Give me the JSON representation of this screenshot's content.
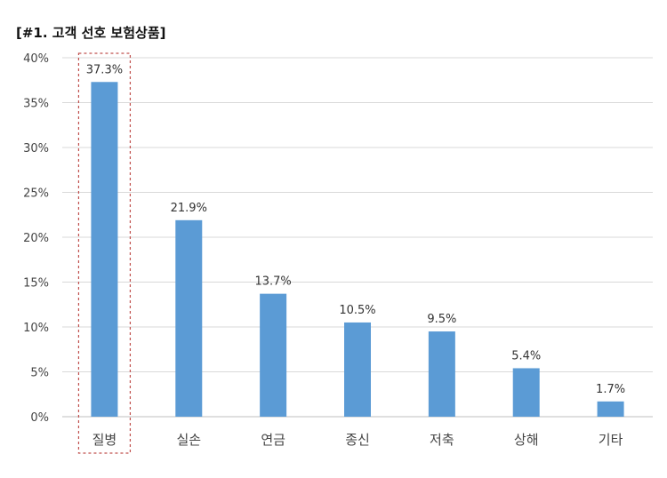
{
  "chart_data": {
    "type": "bar",
    "title": "[#1. 고객 선호 보험상품]",
    "categories": [
      "질병",
      "실손",
      "연금",
      "종신",
      "저축",
      "상해",
      "기타"
    ],
    "values": [
      37.3,
      21.9,
      13.7,
      10.5,
      9.5,
      5.4,
      1.7
    ],
    "data_labels": [
      "37.3%",
      "21.9%",
      "13.7%",
      "10.5%",
      "9.5%",
      "5.4%",
      "1.7%"
    ],
    "yticks": [
      0,
      5,
      10,
      15,
      20,
      25,
      30,
      35,
      40
    ],
    "ytick_labels": [
      "0%",
      "5%",
      "10%",
      "15%",
      "20%",
      "25%",
      "30%",
      "35%",
      "40%"
    ],
    "ylim": [
      0,
      40
    ],
    "grid": true,
    "highlighted_category": "질병",
    "colors": {
      "bar": "#5b9bd5",
      "grid": "#d9d9d9",
      "highlight": "#c0504d"
    }
  }
}
